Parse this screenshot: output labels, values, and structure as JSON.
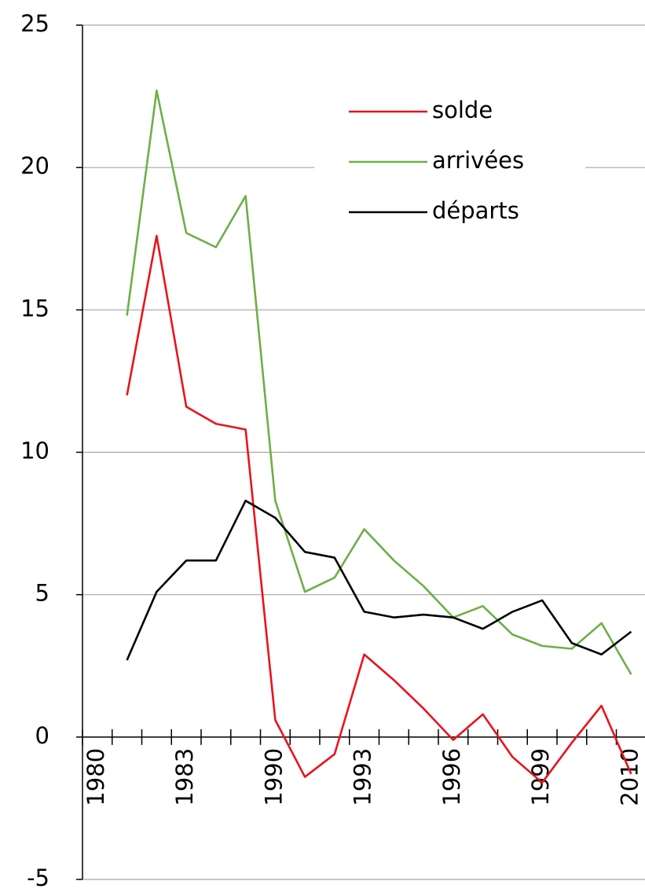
{
  "chart_data": {
    "type": "line",
    "categories": [
      "1980",
      null,
      null,
      "1983",
      null,
      null,
      "1990",
      null,
      null,
      "1993",
      null,
      null,
      "1996",
      null,
      null,
      "1999",
      null,
      null,
      "2010"
    ],
    "series": [
      {
        "name": "solde",
        "color": "#e8141c",
        "values": [
          null,
          12.0,
          17.6,
          11.6,
          11.0,
          10.8,
          0.6,
          -1.4,
          -0.6,
          2.9,
          2.0,
          1.0,
          -0.1,
          0.8,
          -0.7,
          -1.6,
          -0.2,
          1.1,
          -1.3
        ]
      },
      {
        "name": "arrivées",
        "color": "#6fae48",
        "values": [
          null,
          14.8,
          22.7,
          17.7,
          17.2,
          19.0,
          8.3,
          5.1,
          5.6,
          7.3,
          6.2,
          5.3,
          4.2,
          4.6,
          3.6,
          3.2,
          3.1,
          4.0,
          2.2
        ]
      },
      {
        "name": "départs",
        "color": "#000000",
        "values": [
          null,
          2.7,
          5.1,
          6.2,
          6.2,
          8.3,
          7.7,
          6.5,
          6.3,
          4.4,
          4.2,
          4.3,
          4.2,
          3.8,
          4.4,
          4.8,
          3.3,
          2.9,
          3.7
        ]
      }
    ],
    "ylim": [
      -5,
      25
    ],
    "yticks": [
      -5,
      0,
      5,
      10,
      15,
      20,
      25
    ],
    "grid": true,
    "legend": "top-right"
  }
}
